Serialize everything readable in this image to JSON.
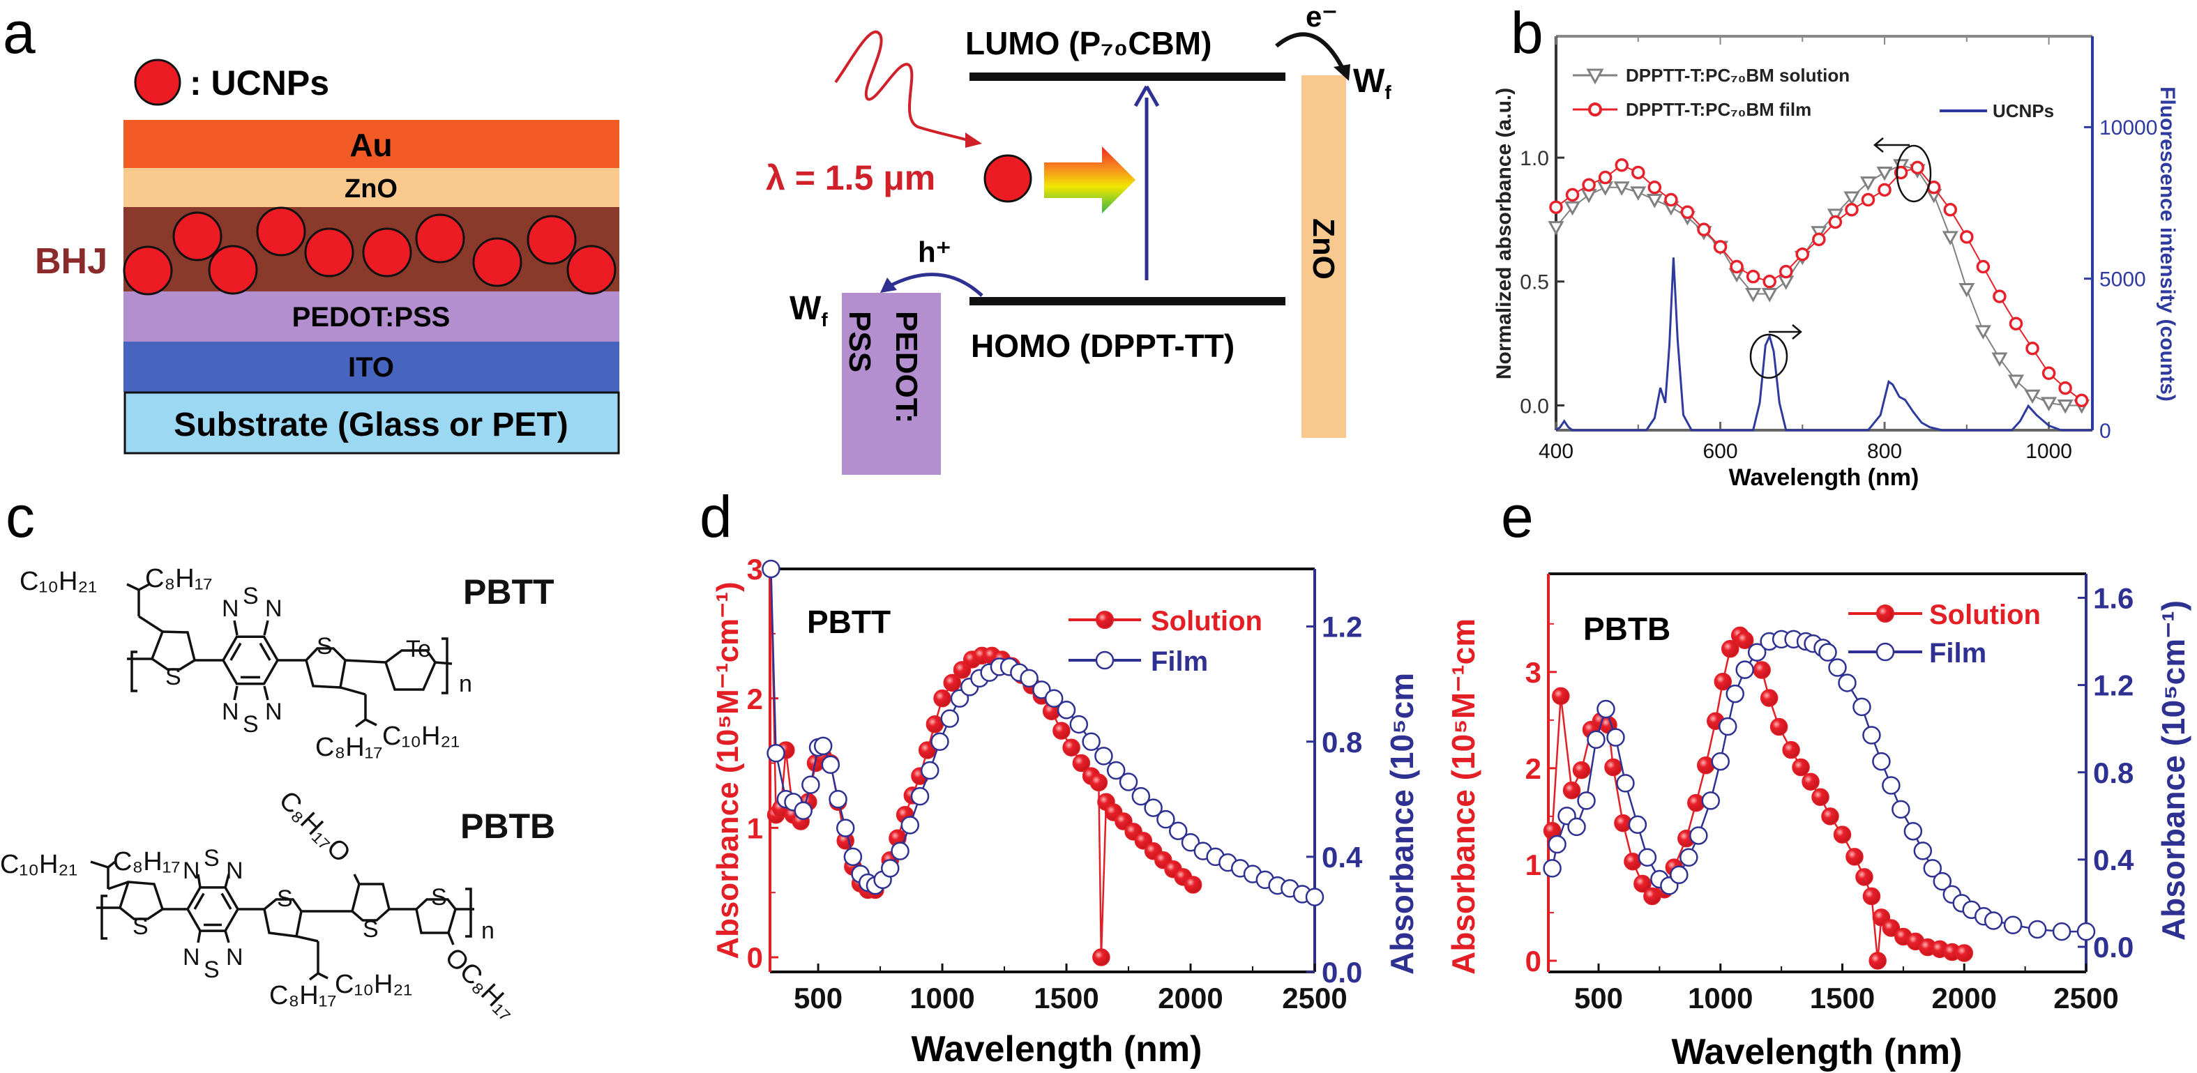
{
  "panel_labels": {
    "a": "a",
    "b": "b",
    "c": "c",
    "d": "d",
    "e": "e"
  },
  "panel_a": {
    "legend_label": ": UCNPs",
    "ucnp_color": "#ed1c24",
    "bhj_label": "BHJ",
    "bhj_color": "#8b2a2a",
    "layers": [
      {
        "label": "Au",
        "color": "#f15a24"
      },
      {
        "label": "ZnO",
        "color": "#f9c98e"
      },
      {
        "label": "",
        "color": "#8a3a2a"
      },
      {
        "label": "PEDOT:PSS",
        "color": "#b48fcf"
      },
      {
        "label": "ITO",
        "color": "#4765bf"
      },
      {
        "label": "Substrate (Glass or PET)",
        "color": "#9dd8f3"
      }
    ],
    "energy": {
      "lumo": "LUMO (P₇₀CBM)",
      "homo": "HOMO (DPPT-TT)",
      "electron": "e⁻",
      "hole": "h⁺",
      "wf_base": "W",
      "wf_sub": "f",
      "zno": "ZnO",
      "pedot_line1": "PEDOT:",
      "pedot_line2": "PSS",
      "excitation": "λ = 1.5 μm",
      "zno_color": "#f8c88e",
      "pedot_color": "#b48fcf",
      "excitation_color": "#d0202a",
      "transition_color": "#2e3192"
    }
  },
  "panel_c": {
    "pbtt": {
      "name": "PBTT",
      "c10h21": "C₁₀H₂₁",
      "c8h17": "C₈H₁₇",
      "c8h17_b": "C₈H₁₇",
      "c10h21_b": "C₁₀H₂₁",
      "s": "S",
      "n": "N",
      "te": "Te",
      "repeat": "n"
    },
    "pbtb": {
      "name": "PBTB",
      "c10h21": "C₁₀H₂₁",
      "c8h17": "C₈H₁₇",
      "c8h17_b": "C₈H₁₇",
      "c10h21_b": "C₁₀H₂₁",
      "alkoxy_top": "C₈H₁₇O",
      "alkoxy_bottom": "OC₈H₁₇",
      "s": "S",
      "n": "N",
      "repeat": "n"
    }
  },
  "chart_data": [
    {
      "panel": "b",
      "type": "line",
      "xlabel": "Wavelength (nm)",
      "ylabel": "Normalized absorbance (a.u.)",
      "ylabel_right": "Fluorescence intensity (counts)",
      "xlim": [
        400,
        1053
      ],
      "ylim": [
        -0.1,
        1.49
      ],
      "ylim_right": [
        0,
        13000
      ],
      "x_ticks": [
        400,
        600,
        800,
        1000
      ],
      "x_tick_labels": [
        "400",
        "600",
        "800",
        "1000"
      ],
      "y_ticks": [
        0,
        0.5,
        1.0
      ],
      "y_tick_labels": [
        "0.0",
        "0.5",
        "1.0"
      ],
      "y_right_ticks": [
        0,
        5000,
        10000
      ],
      "y_right_tick_labels": [
        "0",
        "5000",
        "10000"
      ],
      "legend": "top-left",
      "grid": false,
      "series": [
        {
          "name": "DPPTT-T:PC₇₀BM solution",
          "axis": "left",
          "color": "#808080",
          "marker": "triangle-down-open",
          "x": [
            400,
            420,
            440,
            460,
            480,
            500,
            520,
            540,
            560,
            580,
            600,
            620,
            640,
            660,
            680,
            700,
            720,
            740,
            760,
            780,
            800,
            820,
            840,
            860,
            880,
            900,
            920,
            940,
            960,
            980,
            1000,
            1020,
            1040
          ],
          "y": [
            0.72,
            0.8,
            0.85,
            0.88,
            0.88,
            0.86,
            0.83,
            0.8,
            0.76,
            0.7,
            0.64,
            0.53,
            0.45,
            0.45,
            0.5,
            0.6,
            0.7,
            0.77,
            0.84,
            0.9,
            0.94,
            0.97,
            0.95,
            0.85,
            0.68,
            0.47,
            0.3,
            0.19,
            0.1,
            0.04,
            0.01,
            0.0,
            0.0
          ]
        },
        {
          "name": "DPPTT-T:PC₇₀BM film",
          "axis": "left",
          "color": "#e8202a",
          "marker": "circle-open",
          "x": [
            400,
            420,
            440,
            460,
            480,
            500,
            520,
            540,
            560,
            580,
            600,
            620,
            640,
            660,
            680,
            700,
            720,
            740,
            760,
            780,
            800,
            820,
            840,
            860,
            880,
            900,
            920,
            940,
            960,
            980,
            1000,
            1020,
            1040
          ],
          "y": [
            0.8,
            0.85,
            0.89,
            0.92,
            0.97,
            0.94,
            0.88,
            0.83,
            0.78,
            0.71,
            0.64,
            0.56,
            0.52,
            0.5,
            0.54,
            0.61,
            0.67,
            0.74,
            0.79,
            0.83,
            0.87,
            0.94,
            0.96,
            0.88,
            0.79,
            0.68,
            0.56,
            0.44,
            0.33,
            0.23,
            0.13,
            0.07,
            0.02
          ]
        },
        {
          "name": "UCNPs",
          "axis": "right",
          "color": "#2e3a9e",
          "marker": "none",
          "x": [
            400,
            405,
            410,
            415,
            420,
            510,
            520,
            527,
            533,
            538,
            543,
            548,
            555,
            565,
            640,
            648,
            655,
            660,
            665,
            672,
            680,
            780,
            795,
            805,
            810,
            818,
            825,
            835,
            845,
            855,
            870,
            955,
            965,
            975,
            985,
            1000,
            1015,
            1053
          ],
          "y": [
            0,
            100,
            300,
            100,
            0,
            0,
            400,
            1400,
            900,
            2800,
            5700,
            3000,
            500,
            0,
            0,
            900,
            2800,
            3100,
            2600,
            900,
            0,
            0,
            500,
            1600,
            1500,
            1100,
            1000,
            600,
            250,
            100,
            0,
            0,
            300,
            800,
            500,
            150,
            0,
            0
          ]
        }
      ]
    },
    {
      "panel": "d",
      "type": "line",
      "title": "PBTT",
      "xlabel": "Wavelength (nm)",
      "ylabel": "Absorbance (10⁵M⁻¹cm⁻¹)",
      "ylabel_right": "Absorbance (10⁵cm",
      "xlim": [
        306,
        2500
      ],
      "ylim": [
        -0.113,
        3.0
      ],
      "ylim_right": [
        0,
        1.4
      ],
      "x_ticks": [
        500,
        1000,
        1500,
        2000,
        2500
      ],
      "x_tick_labels": [
        "500",
        "1000",
        "1500",
        "2000",
        "2500"
      ],
      "y_ticks": [
        0,
        1,
        2,
        3
      ],
      "y_tick_labels": [
        "0",
        "1",
        "2",
        "3"
      ],
      "y_right_ticks": [
        0,
        0.4,
        0.8,
        1.2
      ],
      "y_right_tick_labels": [
        "0.0",
        "0.4",
        "0.8",
        "1.2"
      ],
      "legend": "top-right",
      "grid": false,
      "series": [
        {
          "name": "Solution",
          "axis": "left",
          "color": "#e31e24",
          "marker": "circle-filled",
          "x": [
            310,
            330,
            350,
            370,
            400,
            430,
            460,
            490,
            520,
            550,
            580,
            610,
            640,
            670,
            700,
            730,
            760,
            790,
            820,
            850,
            880,
            910,
            940,
            970,
            1000,
            1040,
            1080,
            1120,
            1160,
            1200,
            1240,
            1280,
            1320,
            1360,
            1400,
            1440,
            1480,
            1520,
            1560,
            1600,
            1630,
            1640,
            1660,
            1690,
            1730,
            1770,
            1810,
            1850,
            1890,
            1930,
            1970,
            2010
          ],
          "y": [
            3.0,
            1.1,
            1.15,
            1.6,
            1.1,
            1.05,
            1.2,
            1.5,
            1.55,
            1.5,
            1.2,
            0.9,
            0.7,
            0.57,
            0.52,
            0.52,
            0.6,
            0.75,
            0.92,
            1.1,
            1.25,
            1.4,
            1.6,
            1.8,
            2.0,
            2.12,
            2.22,
            2.3,
            2.33,
            2.33,
            2.3,
            2.25,
            2.18,
            2.1,
            2.02,
            1.9,
            1.75,
            1.62,
            1.5,
            1.4,
            1.35,
            0.0,
            1.2,
            1.12,
            1.05,
            0.97,
            0.9,
            0.82,
            0.75,
            0.68,
            0.62,
            0.56
          ]
        },
        {
          "name": "Film",
          "axis": "right",
          "color": "#2e3192",
          "marker": "circle-open",
          "x": [
            310,
            330,
            370,
            400,
            440,
            470,
            500,
            520,
            550,
            580,
            610,
            640,
            670,
            700,
            730,
            760,
            790,
            830,
            870,
            910,
            950,
            990,
            1030,
            1070,
            1110,
            1150,
            1190,
            1230,
            1270,
            1310,
            1350,
            1400,
            1450,
            1500,
            1550,
            1600,
            1650,
            1700,
            1750,
            1800,
            1850,
            1900,
            1950,
            2000,
            2050,
            2100,
            2150,
            2200,
            2250,
            2300,
            2350,
            2400,
            2450,
            2500
          ],
          "y": [
            1.4,
            0.76,
            0.6,
            0.59,
            0.56,
            0.65,
            0.78,
            0.785,
            0.72,
            0.6,
            0.5,
            0.4,
            0.34,
            0.31,
            0.3,
            0.32,
            0.36,
            0.42,
            0.51,
            0.61,
            0.7,
            0.8,
            0.88,
            0.95,
            0.99,
            1.02,
            1.04,
            1.06,
            1.06,
            1.04,
            1.02,
            0.98,
            0.95,
            0.91,
            0.86,
            0.8,
            0.75,
            0.7,
            0.66,
            0.61,
            0.57,
            0.53,
            0.49,
            0.45,
            0.42,
            0.4,
            0.38,
            0.36,
            0.34,
            0.32,
            0.3,
            0.29,
            0.27,
            0.26
          ]
        }
      ]
    },
    {
      "panel": "e",
      "type": "line",
      "title": "PBTB",
      "xlabel": "Wavelength (nm)",
      "ylabel": "Absorbance (10⁵M⁻¹cm",
      "ylabel_right": "Absorbance (10⁵cm⁻¹)",
      "xlim": [
        294,
        2500
      ],
      "ylim": [
        -0.116,
        4.02
      ],
      "ylim_right": [
        -0.115,
        1.71
      ],
      "x_ticks": [
        500,
        1000,
        1500,
        2000,
        2500
      ],
      "x_tick_labels": [
        "500",
        "1000",
        "1500",
        "2000",
        "2500"
      ],
      "y_ticks": [
        0,
        1,
        2,
        3
      ],
      "y_tick_labels": [
        "0",
        "1",
        "2",
        "3"
      ],
      "y_right_ticks": [
        0,
        0.4,
        0.8,
        1.2,
        1.6
      ],
      "y_right_tick_labels": [
        "0.0",
        "0.4",
        "0.8",
        "1.2",
        "1.6"
      ],
      "legend": "top-right",
      "grid": false,
      "series": [
        {
          "name": "Solution",
          "axis": "left",
          "color": "#e31e24",
          "marker": "circle-filled",
          "x": [
            310,
            345,
            390,
            430,
            470,
            510,
            540,
            560,
            600,
            640,
            680,
            720,
            770,
            810,
            860,
            900,
            940,
            980,
            1010,
            1040,
            1080,
            1100,
            1170,
            1200,
            1240,
            1290,
            1330,
            1370,
            1410,
            1450,
            1500,
            1550,
            1590,
            1620,
            1645,
            1660,
            1700,
            1750,
            1800,
            1850,
            1900,
            1950,
            2000
          ],
          "y": [
            1.35,
            2.75,
            1.77,
            1.98,
            2.4,
            2.49,
            2.45,
            2.01,
            1.43,
            1.03,
            0.8,
            0.67,
            0.74,
            0.97,
            1.27,
            1.64,
            2.03,
            2.49,
            2.9,
            3.24,
            3.38,
            3.33,
            3.02,
            2.73,
            2.43,
            2.19,
            2.01,
            1.86,
            1.7,
            1.5,
            1.31,
            1.08,
            0.87,
            0.67,
            0.0,
            0.45,
            0.34,
            0.25,
            0.2,
            0.14,
            0.12,
            0.09,
            0.08
          ]
        },
        {
          "name": "Film",
          "axis": "right",
          "color": "#2e3192",
          "marker": "circle-open",
          "x": [
            310,
            330,
            370,
            410,
            450,
            490,
            530,
            570,
            610,
            660,
            700,
            750,
            790,
            830,
            870,
            910,
            960,
            1000,
            1030,
            1060,
            1100,
            1150,
            1200,
            1250,
            1300,
            1350,
            1380,
            1420,
            1440,
            1480,
            1520,
            1580,
            1620,
            1660,
            1700,
            1740,
            1790,
            1830,
            1870,
            1910,
            1950,
            1990,
            2030,
            2080,
            2120,
            2200,
            2300,
            2400,
            2500
          ],
          "y": [
            0.36,
            0.47,
            0.6,
            0.55,
            0.67,
            0.95,
            1.09,
            0.96,
            0.75,
            0.56,
            0.41,
            0.31,
            0.28,
            0.33,
            0.41,
            0.51,
            0.67,
            0.85,
            1.01,
            1.16,
            1.27,
            1.35,
            1.4,
            1.41,
            1.41,
            1.4,
            1.39,
            1.37,
            1.35,
            1.28,
            1.21,
            1.1,
            0.97,
            0.85,
            0.74,
            0.63,
            0.53,
            0.44,
            0.36,
            0.3,
            0.24,
            0.2,
            0.17,
            0.14,
            0.12,
            0.1,
            0.08,
            0.07,
            0.07
          ]
        }
      ]
    }
  ]
}
